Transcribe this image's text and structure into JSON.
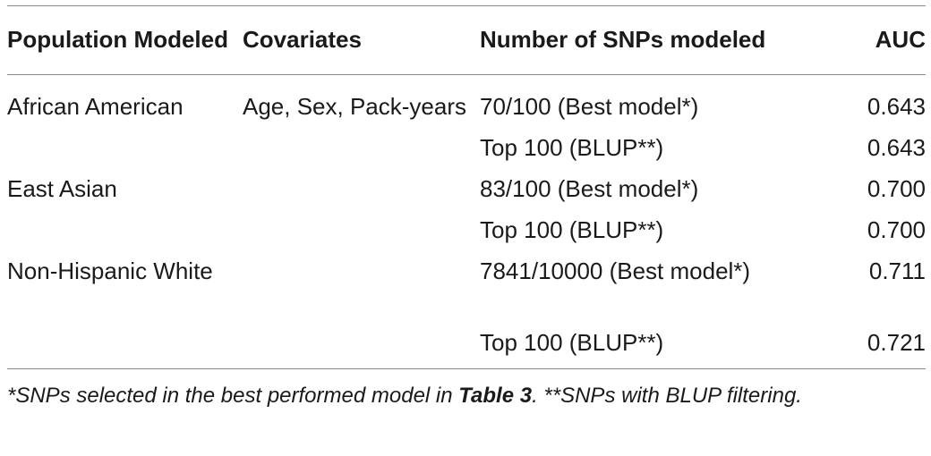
{
  "table": {
    "headers": {
      "population": "Population Modeled",
      "covariates": "Covariates",
      "snps": "Number of SNPs modeled",
      "auc": "AUC"
    },
    "rows": [
      {
        "population": "African American",
        "covariates": "Age, Sex, Pack-years",
        "snps": "70/100 (Best model*)",
        "auc": "0.643"
      },
      {
        "population": "",
        "covariates": "",
        "snps": "Top 100 (BLUP**)",
        "auc": "0.643"
      },
      {
        "population": "East Asian",
        "covariates": "",
        "snps": "83/100 (Best model*)",
        "auc": "0.700"
      },
      {
        "population": "",
        "covariates": "",
        "snps": "Top 100 (BLUP**)",
        "auc": "0.700"
      },
      {
        "population": "Non-Hispanic White",
        "covariates": "",
        "snps": "7841/10000 (Best model*)",
        "auc": "0.711"
      },
      {
        "population": "",
        "covariates": "",
        "snps": "Top 100 (BLUP**)",
        "auc": "0.721"
      }
    ]
  },
  "footnote": {
    "part1": "*SNPs selected in the best performed model in ",
    "table_ref": "Table 3",
    "part2": ". **SNPs with BLUP filtering."
  }
}
